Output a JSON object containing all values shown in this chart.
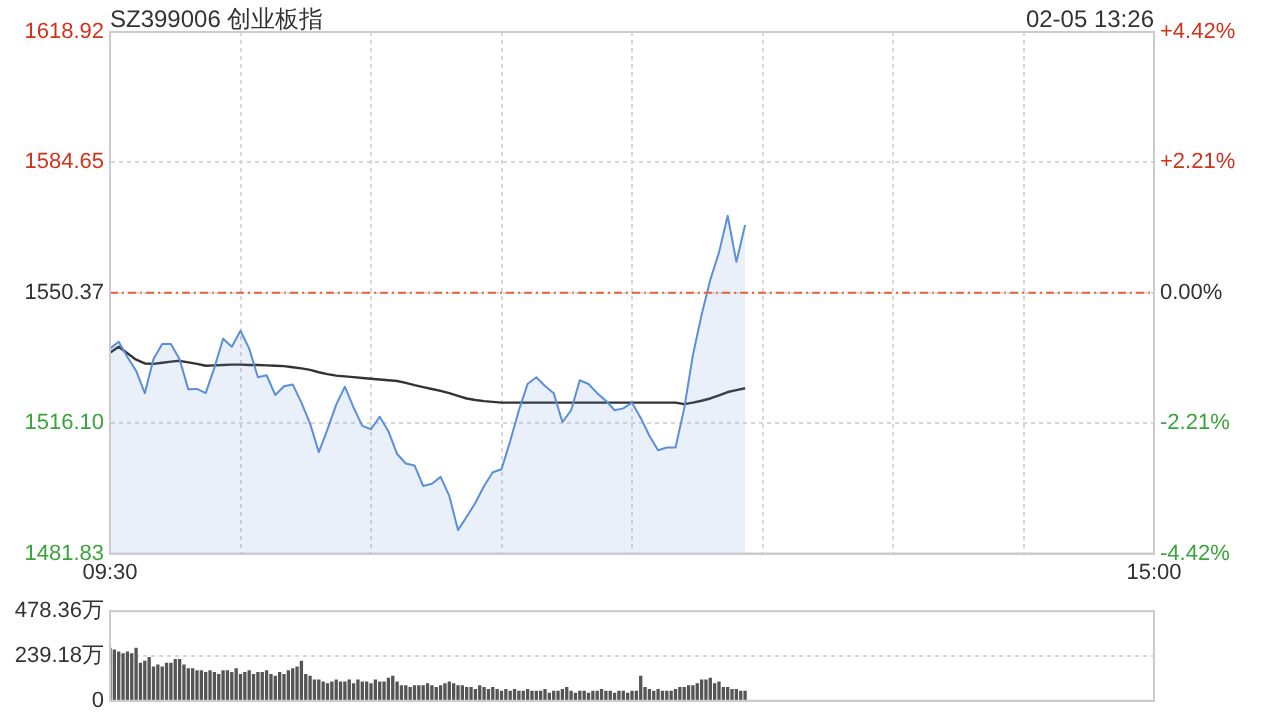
{
  "chart_data": [
    {
      "type": "area",
      "title": "SZ399006 创业板指",
      "annotations": [
        "02-05 13:26"
      ],
      "categories": [
        "09:30",
        null,
        null,
        null,
        null,
        null,
        null,
        null,
        null,
        null,
        null,
        null,
        null,
        null,
        null,
        null,
        null,
        null,
        null,
        null,
        null,
        null,
        null,
        null,
        null,
        null,
        null,
        null,
        null,
        null,
        null,
        null,
        null,
        null,
        null,
        null,
        null,
        null,
        null,
        null,
        null,
        null,
        null,
        null,
        null,
        null,
        null,
        null,
        null,
        null,
        null,
        null,
        null,
        null,
        null,
        null,
        null,
        null,
        null,
        null,
        null,
        null,
        null,
        null,
        null,
        null,
        null,
        null,
        null,
        null,
        null,
        null,
        null,
        null,
        null,
        null,
        null,
        null,
        null,
        null,
        null,
        null,
        null,
        null,
        null,
        null,
        null,
        null,
        null,
        null,
        null,
        null,
        null,
        null,
        null,
        null,
        null,
        null,
        null,
        null,
        null,
        null,
        null,
        null,
        null,
        null,
        null,
        null,
        null,
        null,
        null,
        null,
        null,
        null,
        null,
        null,
        null,
        null,
        null,
        null,
        "15:00"
      ],
      "ylim": [
        1481.83,
        1618.92
      ],
      "yticks": [
        1481.83,
        {
          "value": 1516.1,
          "label": "1516.10"
        },
        1550.37,
        1584.65,
        1618.92
      ],
      "y2lim": [
        -4.42,
        4.42
      ],
      "y2ticks": [
        {
          "value": -4.42,
          "label": "-4.42%"
        },
        {
          "value": -2.21,
          "label": "-2.21%"
        },
        {
          "value": 0,
          "label": "0.00%"
        },
        {
          "value": 2.21,
          "label": "+2.21%"
        },
        {
          "value": 4.42,
          "label": "+4.42%"
        }
      ],
      "ref_lines": [
        {
          "axis": "y",
          "value": 1550.37,
          "color": "#e8603c",
          "line_style": "dashed"
        }
      ],
      "grid": true,
      "marker": "none",
      "series": [
        {
          "color": "#5b8fd6",
          "values": [
            1535.7,
            1537.5,
            1533.5,
            1529.9,
            1524.0,
            1533.0,
            1536.9,
            1536.9,
            1532.9,
            1525.0,
            1525.1,
            1524.0,
            1530.7,
            1538.3,
            1536.2,
            1540.4,
            1535.7,
            1528.2,
            1528.7,
            1523.5,
            1525.8,
            1526.3,
            1521.5,
            1516.0,
            1508.5,
            1514.5,
            1521.0,
            1525.7,
            1520.2,
            1515.4,
            1514.5,
            1517.8,
            1514.0,
            1508.0,
            1505.5,
            1505.0,
            1499.6,
            1500.2,
            1502.0,
            1497.0,
            1488.0,
            1491.5,
            1495.2,
            1499.6,
            1503.2,
            1504.0,
            1511.4,
            1519.5,
            1526.4,
            1528.2,
            1525.9,
            1524.0,
            1516.4,
            1519.5,
            1527.4,
            1526.4,
            1524.0,
            1522.0,
            1519.5,
            1520.0,
            1521.5,
            1517.5,
            1512.8,
            1509.0,
            1509.7,
            1509.7,
            1520.0,
            1534.0,
            1544.6,
            1553.8,
            1561.0,
            1570.6,
            1558.5,
            1568.2,
            null,
            null,
            null,
            null,
            null,
            null,
            null,
            null,
            null,
            null,
            null,
            null,
            null,
            null,
            null,
            null,
            null,
            null,
            null,
            null,
            null,
            null,
            null,
            null,
            null,
            null,
            null,
            null,
            null,
            null,
            null,
            null,
            null,
            null,
            null,
            null,
            null,
            null,
            null,
            null,
            null,
            null,
            null,
            null,
            null,
            null,
            null
          ]
        },
        {
          "type": "line",
          "color": "#333333",
          "values": [
            1534.6,
            1536.2,
            1534.5,
            1532.8,
            1531.8,
            1531.7,
            1532.0,
            1532.3,
            1532.5,
            1532.1,
            1531.7,
            1531.2,
            1531.3,
            1531.4,
            1531.5,
            1531.5,
            1531.4,
            1531.4,
            1531.3,
            1531.2,
            1531.1,
            1530.8,
            1530.5,
            1530.1,
            1529.5,
            1529.0,
            1528.6,
            1528.4,
            1528.2,
            1528.0,
            1527.8,
            1527.6,
            1527.4,
            1527.2,
            1526.7,
            1526.1,
            1525.6,
            1525.1,
            1524.6,
            1524.0,
            1523.3,
            1522.6,
            1522.2,
            1521.9,
            1521.7,
            1521.5,
            1521.5,
            1521.5,
            1521.5,
            1521.5,
            1521.5,
            1521.5,
            1521.5,
            1521.5,
            1521.5,
            1521.5,
            1521.5,
            1521.5,
            1521.5,
            1521.5,
            1521.5,
            1521.5,
            1521.5,
            1521.5,
            1521.5,
            1521.5,
            1521.1,
            1521.5,
            1522.0,
            1522.6,
            1523.4,
            1524.3,
            1524.8,
            1525.3,
            null,
            null,
            null,
            null,
            null,
            null,
            null,
            null,
            null,
            null,
            null,
            null,
            null,
            null,
            null,
            null,
            null,
            null,
            null,
            null,
            null,
            null,
            null,
            null,
            null,
            null,
            null,
            null,
            null,
            null,
            null,
            null,
            null,
            null,
            null,
            null,
            null,
            null,
            null,
            null,
            null,
            null,
            null,
            null,
            null,
            null,
            null
          ]
        }
      ]
    },
    {
      "type": "bar",
      "tick_labels": "y",
      "grid": "y",
      "categories": [
        null,
        null,
        null,
        null,
        null,
        null,
        null,
        null,
        null,
        null,
        null,
        null,
        null,
        null,
        null,
        null,
        null,
        null,
        null,
        null,
        null,
        null,
        null,
        null,
        null,
        null,
        null,
        null,
        null,
        null,
        null,
        null,
        null,
        null,
        null,
        null,
        null,
        null,
        null,
        null,
        null,
        null,
        null,
        null,
        null,
        null,
        null,
        null,
        null,
        null,
        null,
        null,
        null,
        null,
        null,
        null,
        null,
        null,
        null,
        null,
        null,
        null,
        null,
        null,
        null,
        null,
        null,
        null,
        null,
        null,
        null,
        null,
        null,
        null,
        null,
        null,
        null,
        null,
        null,
        null,
        null,
        null,
        null,
        null,
        null,
        null,
        null,
        null,
        null,
        null,
        null,
        null,
        null,
        null,
        null,
        null,
        null,
        null,
        null,
        null,
        null,
        null,
        null,
        null,
        null,
        null,
        null,
        null,
        null,
        null,
        null,
        null,
        null,
        null,
        null,
        null,
        null,
        null,
        null,
        null,
        null,
        null,
        null,
        null,
        null,
        null,
        null,
        null,
        null,
        null,
        null,
        null,
        null,
        null,
        null,
        null,
        null,
        null,
        null,
        null,
        null,
        null,
        null,
        null,
        null,
        null,
        null,
        null,
        null,
        null,
        null,
        null,
        null,
        null,
        null,
        null,
        null,
        null,
        null,
        null,
        null,
        null,
        null,
        null,
        null,
        null,
        null,
        null,
        null,
        null,
        null,
        null,
        null,
        null,
        null,
        null,
        null,
        null,
        null,
        null,
        null,
        null,
        null,
        null,
        null,
        null,
        null,
        null,
        null,
        null,
        null,
        null,
        null,
        null,
        null,
        null,
        null,
        null,
        null,
        null,
        null,
        null,
        null,
        null,
        null,
        null,
        null,
        null,
        null,
        null,
        null,
        null,
        null,
        null,
        null,
        null,
        null,
        null,
        null,
        null,
        null,
        null,
        null,
        null,
        null,
        null,
        null,
        null,
        null,
        null,
        null,
        null,
        null,
        null,
        null,
        null,
        null,
        null,
        null,
        null,
        null
      ],
      "ylim": [
        0,
        478.36
      ],
      "yticks": [
        0,
        {
          "value": 239.18,
          "label": "239.18万"
        },
        {
          "value": 478.36,
          "label": "478.36万"
        }
      ],
      "series": [
        {
          "color": "#555555",
          "values": [
            280,
            270,
            260,
            250,
            260,
            250,
            280,
            200,
            210,
            230,
            180,
            190,
            180,
            200,
            200,
            220,
            220,
            190,
            170,
            170,
            160,
            160,
            150,
            160,
            150,
            140,
            160,
            160,
            150,
            170,
            140,
            150,
            160,
            140,
            150,
            150,
            160,
            140,
            130,
            150,
            140,
            160,
            170,
            180,
            210,
            140,
            130,
            110,
            110,
            100,
            90,
            100,
            110,
            100,
            100,
            110,
            90,
            110,
            100,
            100,
            90,
            110,
            100,
            100,
            120,
            130,
            100,
            80,
            80,
            70,
            80,
            80,
            80,
            90,
            80,
            70,
            80,
            90,
            100,
            90,
            80,
            80,
            70,
            70,
            60,
            80,
            70,
            60,
            70,
            60,
            50,
            60,
            50,
            60,
            50,
            50,
            60,
            50,
            50,
            50,
            60,
            40,
            50,
            50,
            60,
            70,
            50,
            40,
            50,
            50,
            40,
            50,
            50,
            60,
            50,
            50,
            40,
            50,
            50,
            40,
            50,
            50,
            130,
            70,
            60,
            50,
            60,
            50,
            50,
            50,
            60,
            70,
            70,
            80,
            80,
            90,
            110,
            110,
            120,
            90,
            100,
            70,
            70,
            60,
            60,
            50,
            50,
            null,
            null,
            null,
            null,
            null,
            null,
            null,
            null,
            null,
            null,
            null,
            null,
            null,
            null,
            null,
            null,
            null,
            null,
            null,
            null,
            null,
            null,
            null,
            null,
            null,
            null,
            null,
            null,
            null,
            null,
            null,
            null,
            null,
            null,
            null,
            null,
            null,
            null,
            null,
            null,
            null,
            null,
            null,
            null,
            null,
            null,
            null,
            null,
            null,
            null,
            null,
            null,
            null,
            null,
            null,
            null,
            null,
            null,
            null,
            null,
            null,
            null,
            null,
            null,
            null,
            null,
            null,
            null,
            null,
            null,
            null,
            null,
            null,
            null,
            null,
            null,
            null,
            null,
            null,
            null,
            null,
            null,
            null,
            null,
            null,
            null,
            null,
            null,
            null,
            null,
            null,
            null,
            null,
            null
          ]
        }
      ]
    }
  ]
}
